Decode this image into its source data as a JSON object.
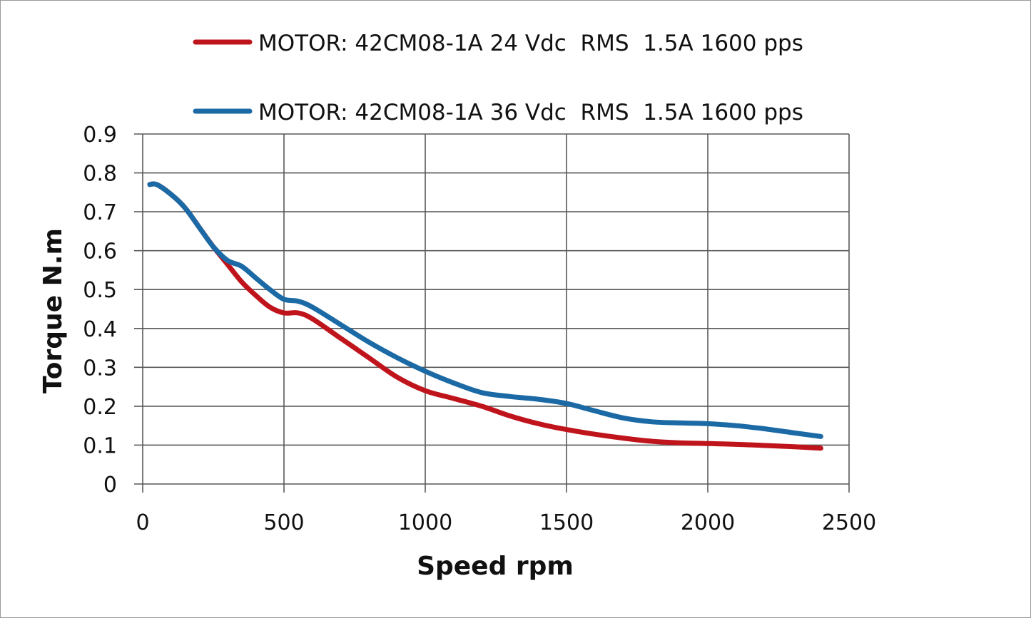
{
  "chart_data": {
    "type": "line",
    "title": "",
    "xlabel": "Speed rpm",
    "ylabel": "Torque N.m",
    "xlim": [
      0,
      2500
    ],
    "ylim": [
      0,
      0.9
    ],
    "x_ticks": [
      "0",
      "500",
      "1000",
      "1500",
      "2000",
      "2500"
    ],
    "y_ticks": [
      "0",
      "0.1",
      "0.2",
      "0.3",
      "0.4",
      "0.5",
      "0.6",
      "0.7",
      "0.8",
      "0.9"
    ],
    "grid": true,
    "legend_position": "top",
    "series": [
      {
        "name": "MOTOR: 42CM08-1A 24 Vdc  RMS  1.5A 1600 pps",
        "color": "#c0141c",
        "x": [
          25,
          50,
          100,
          150,
          200,
          250,
          300,
          350,
          400,
          450,
          500,
          550,
          600,
          700,
          800,
          900,
          1000,
          1100,
          1200,
          1300,
          1400,
          1500,
          1600,
          1700,
          1800,
          1900,
          2000,
          2100,
          2200,
          2300,
          2400
        ],
        "y": [
          0.77,
          0.77,
          0.745,
          0.71,
          0.66,
          0.61,
          0.565,
          0.52,
          0.485,
          0.455,
          0.44,
          0.44,
          0.425,
          0.375,
          0.325,
          0.275,
          0.24,
          0.22,
          0.2,
          0.175,
          0.155,
          0.14,
          0.128,
          0.118,
          0.11,
          0.106,
          0.104,
          0.102,
          0.099,
          0.096,
          0.092
        ]
      },
      {
        "name": "MOTOR: 42CM08-1A 36 Vdc  RMS  1.5A 1600 pps",
        "color": "#1b6aa5",
        "x": [
          25,
          50,
          100,
          150,
          200,
          250,
          300,
          350,
          400,
          450,
          500,
          550,
          600,
          700,
          800,
          900,
          1000,
          1100,
          1200,
          1300,
          1400,
          1500,
          1600,
          1700,
          1800,
          1900,
          2000,
          2100,
          2200,
          2300,
          2400
        ],
        "y": [
          0.77,
          0.77,
          0.745,
          0.71,
          0.66,
          0.61,
          0.575,
          0.56,
          0.53,
          0.5,
          0.475,
          0.47,
          0.455,
          0.41,
          0.365,
          0.325,
          0.29,
          0.26,
          0.235,
          0.225,
          0.218,
          0.207,
          0.188,
          0.17,
          0.16,
          0.157,
          0.155,
          0.15,
          0.142,
          0.132,
          0.122
        ]
      }
    ]
  }
}
